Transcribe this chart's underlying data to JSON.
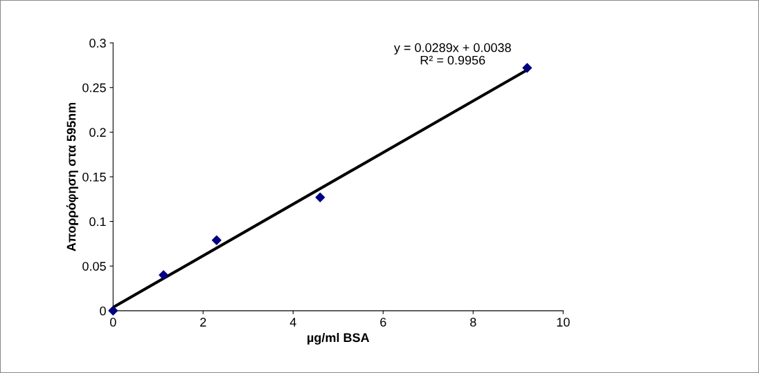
{
  "chart_data": {
    "type": "scatter",
    "xlabel": "µg/ml BSA",
    "ylabel": "Απορρόφηση στα 595nm",
    "x": [
      0,
      1.12,
      2.3,
      4.6,
      9.2
    ],
    "series": [
      {
        "color": "#000080",
        "values": [
          0,
          0.04,
          0.079,
          0.127,
          0.272
        ],
        "marker": "diamond"
      },
      {
        "type": "line",
        "color": "#000000",
        "x": [
          0,
          9.2
        ],
        "values": [
          0.0038,
          0.2697
        ],
        "marker": "none",
        "line_style": "solid"
      }
    ],
    "xlim": [
      0,
      10
    ],
    "xticks": [
      0,
      2,
      4,
      6,
      8,
      10
    ],
    "ylim": [
      0,
      0.3
    ],
    "yticks": [
      0,
      0.05,
      0.1,
      0.15,
      0.2,
      0.25,
      0.3
    ],
    "grid": false,
    "legend": false,
    "annotations": [
      "y = 0.0289x + 0.0038",
      "R² = 0.9956"
    ]
  }
}
